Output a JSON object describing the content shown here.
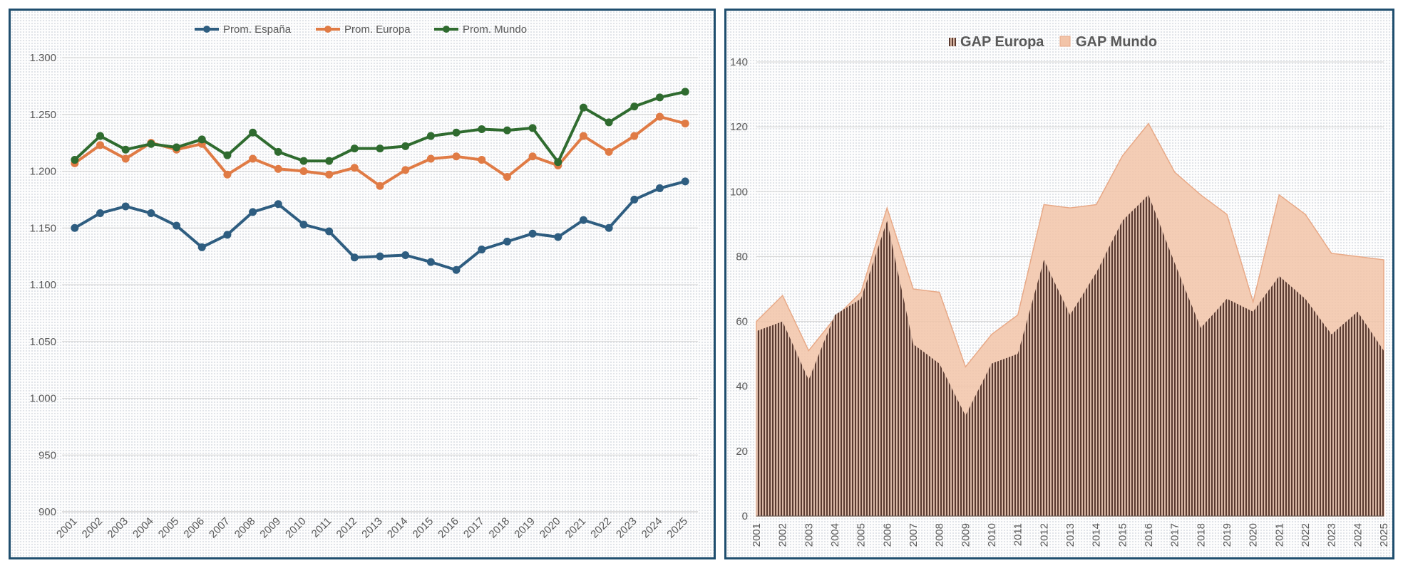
{
  "chart_data": [
    {
      "type": "line",
      "title": "",
      "xlabel": "",
      "ylabel": "",
      "ylim": [
        900,
        1300
      ],
      "y_ticks": [
        "900",
        "950",
        "1.000",
        "1.050",
        "1.100",
        "1.150",
        "1.200",
        "1.250",
        "1.300"
      ],
      "y_tick_values": [
        900,
        950,
        1000,
        1050,
        1100,
        1150,
        1200,
        1250,
        1300
      ],
      "grid": true,
      "legend_position": "top-center",
      "categories": [
        "2001",
        "2002",
        "2003",
        "2004",
        "2005",
        "2006",
        "2007",
        "2008",
        "2009",
        "2010",
        "2011",
        "2012",
        "2013",
        "2014",
        "2015",
        "2016",
        "2017",
        "2018",
        "2019",
        "2020",
        "2021",
        "2022",
        "2023",
        "2024",
        "2025"
      ],
      "series": [
        {
          "name": "Prom. España",
          "color": "#2e5d80",
          "values": [
            1150,
            1163,
            1169,
            1163,
            1152,
            1133,
            1144,
            1164,
            1171,
            1153,
            1147,
            1124,
            1125,
            1126,
            1120,
            1113,
            1131,
            1138,
            1145,
            1142,
            1157,
            1150,
            1175,
            1185,
            1191
          ]
        },
        {
          "name": "Prom. Europa",
          "color": "#e07b45",
          "values": [
            1207,
            1223,
            1211,
            1225,
            1219,
            1224,
            1197,
            1211,
            1202,
            1200,
            1197,
            1203,
            1187,
            1201,
            1211,
            1213,
            1210,
            1195,
            1213,
            1205,
            1231,
            1217,
            1231,
            1248,
            1242
          ]
        },
        {
          "name": "Prom. Mundo",
          "color": "#2f6b2f",
          "values": [
            1210,
            1231,
            1219,
            1224,
            1221,
            1228,
            1214,
            1234,
            1217,
            1209,
            1209,
            1220,
            1220,
            1222,
            1231,
            1234,
            1237,
            1236,
            1238,
            1208,
            1256,
            1243,
            1257,
            1265,
            1270
          ]
        }
      ]
    },
    {
      "type": "area",
      "title": "",
      "xlabel": "",
      "ylabel": "",
      "ylim": [
        0,
        140
      ],
      "y_ticks": [
        "0",
        "20",
        "40",
        "60",
        "80",
        "100",
        "120",
        "140"
      ],
      "y_tick_values": [
        0,
        20,
        40,
        60,
        80,
        100,
        120,
        140
      ],
      "grid": true,
      "legend_position": "top-center",
      "categories": [
        "2001",
        "2002",
        "2003",
        "2004",
        "2005",
        "2006",
        "2007",
        "2008",
        "2009",
        "2010",
        "2011",
        "2012",
        "2013",
        "2014",
        "2015",
        "2016",
        "2017",
        "2018",
        "2019",
        "2020",
        "2021",
        "2022",
        "2023",
        "2024",
        "2025"
      ],
      "series": [
        {
          "name": "GAP Europa",
          "style": "hatched",
          "color": "#5a3a30",
          "values": [
            57,
            60,
            42,
            62,
            67,
            91,
            53,
            47,
            31,
            47,
            50,
            79,
            62,
            75,
            91,
            99,
            78,
            58,
            67,
            63,
            74,
            67,
            56,
            63,
            51
          ]
        },
        {
          "name": "GAP Mundo",
          "style": "fill",
          "color": "#f2c4a8",
          "values": [
            60,
            68,
            51,
            61,
            69,
            95,
            70,
            69,
            46,
            56,
            62,
            96,
            95,
            96,
            111,
            121,
            106,
            99,
            93,
            66,
            99,
            93,
            81,
            80,
            79
          ]
        }
      ]
    }
  ]
}
